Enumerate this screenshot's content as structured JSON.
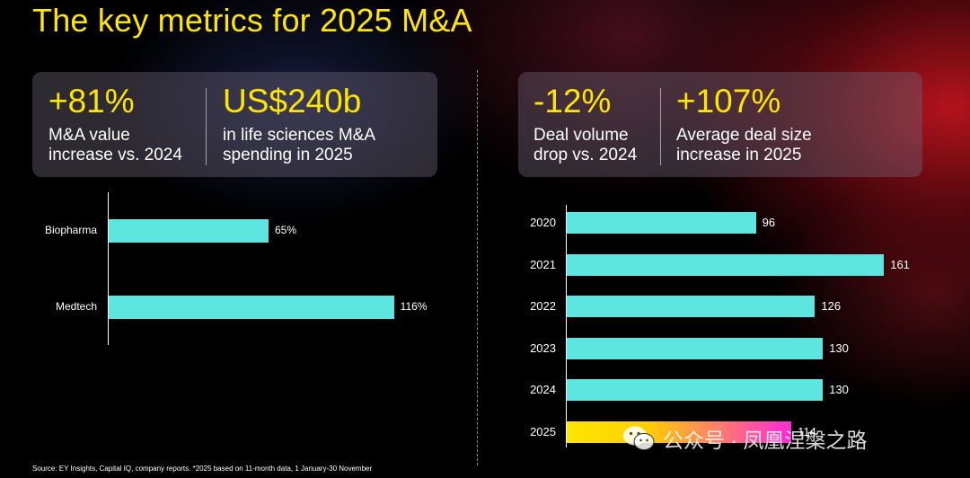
{
  "title": "The key metrics for 2025 M&A",
  "kpis_left": [
    {
      "big": "+81%",
      "line1": "M&A value",
      "line2": "increase vs. 2024"
    },
    {
      "big": "US$240b",
      "line1": "in life sciences M&A",
      "line2": "spending in 2025"
    }
  ],
  "kpis_right": [
    {
      "big": "-12%",
      "line1": "Deal volume",
      "line2": "drop vs. 2024"
    },
    {
      "big": "+107%",
      "line1": "Average deal size",
      "line2": "increase in 2025"
    }
  ],
  "colors": {
    "accent": "#ffe600",
    "bar": "#5de6e0",
    "highlight_start": "#ffe600",
    "highlight_end": "#ff2bd6"
  },
  "chart_data": [
    {
      "type": "bar",
      "orientation": "horizontal",
      "categories": [
        "Biopharma",
        "Medtech"
      ],
      "values": [
        65,
        116
      ],
      "value_labels": [
        "65%",
        "116%"
      ],
      "xlim": [
        0,
        130
      ]
    },
    {
      "type": "bar",
      "orientation": "horizontal",
      "categories": [
        "2020",
        "2021",
        "2022",
        "2023",
        "2024",
        "2025"
      ],
      "values": [
        96,
        161,
        126,
        130,
        130,
        114
      ],
      "value_labels": [
        "96",
        "161",
        "126",
        "130",
        "130",
        "114"
      ],
      "highlight_index": 5,
      "xlim": [
        0,
        165
      ]
    }
  ],
  "source": "Source: EY Insights, Capital IQ, company reports. *2025 based on 11-month data, 1 January-30 November",
  "watermark": {
    "text": "公众号 · 凤凰涅槃之路",
    "icon": "wechat-icon"
  }
}
